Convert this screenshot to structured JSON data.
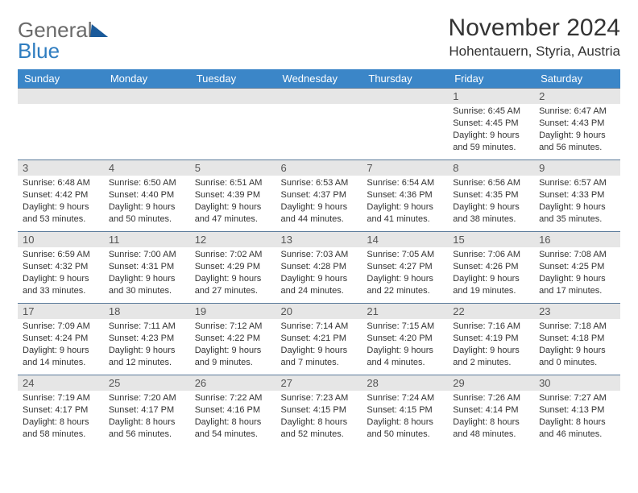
{
  "logo": {
    "word1": "General",
    "word2": "Blue"
  },
  "title": "November 2024",
  "location": "Hohentauern, Styria, Austria",
  "headers": [
    "Sunday",
    "Monday",
    "Tuesday",
    "Wednesday",
    "Thursday",
    "Friday",
    "Saturday"
  ],
  "colors": {
    "header_bg": "#3b86c8",
    "header_text": "#ffffff",
    "daynum_bg": "#e6e6e6",
    "row_border": "#5a7a9a",
    "logo_gray": "#6a6a6a",
    "logo_blue": "#2f7dc0",
    "logo_tri": "#1a5a9a",
    "body_text": "#333333"
  },
  "weeks": [
    [
      null,
      null,
      null,
      null,
      null,
      {
        "n": "1",
        "sr": "Sunrise: 6:45 AM",
        "ss": "Sunset: 4:45 PM",
        "dl": "Daylight: 9 hours and 59 minutes."
      },
      {
        "n": "2",
        "sr": "Sunrise: 6:47 AM",
        "ss": "Sunset: 4:43 PM",
        "dl": "Daylight: 9 hours and 56 minutes."
      }
    ],
    [
      {
        "n": "3",
        "sr": "Sunrise: 6:48 AM",
        "ss": "Sunset: 4:42 PM",
        "dl": "Daylight: 9 hours and 53 minutes."
      },
      {
        "n": "4",
        "sr": "Sunrise: 6:50 AM",
        "ss": "Sunset: 4:40 PM",
        "dl": "Daylight: 9 hours and 50 minutes."
      },
      {
        "n": "5",
        "sr": "Sunrise: 6:51 AM",
        "ss": "Sunset: 4:39 PM",
        "dl": "Daylight: 9 hours and 47 minutes."
      },
      {
        "n": "6",
        "sr": "Sunrise: 6:53 AM",
        "ss": "Sunset: 4:37 PM",
        "dl": "Daylight: 9 hours and 44 minutes."
      },
      {
        "n": "7",
        "sr": "Sunrise: 6:54 AM",
        "ss": "Sunset: 4:36 PM",
        "dl": "Daylight: 9 hours and 41 minutes."
      },
      {
        "n": "8",
        "sr": "Sunrise: 6:56 AM",
        "ss": "Sunset: 4:35 PM",
        "dl": "Daylight: 9 hours and 38 minutes."
      },
      {
        "n": "9",
        "sr": "Sunrise: 6:57 AM",
        "ss": "Sunset: 4:33 PM",
        "dl": "Daylight: 9 hours and 35 minutes."
      }
    ],
    [
      {
        "n": "10",
        "sr": "Sunrise: 6:59 AM",
        "ss": "Sunset: 4:32 PM",
        "dl": "Daylight: 9 hours and 33 minutes."
      },
      {
        "n": "11",
        "sr": "Sunrise: 7:00 AM",
        "ss": "Sunset: 4:31 PM",
        "dl": "Daylight: 9 hours and 30 minutes."
      },
      {
        "n": "12",
        "sr": "Sunrise: 7:02 AM",
        "ss": "Sunset: 4:29 PM",
        "dl": "Daylight: 9 hours and 27 minutes."
      },
      {
        "n": "13",
        "sr": "Sunrise: 7:03 AM",
        "ss": "Sunset: 4:28 PM",
        "dl": "Daylight: 9 hours and 24 minutes."
      },
      {
        "n": "14",
        "sr": "Sunrise: 7:05 AM",
        "ss": "Sunset: 4:27 PM",
        "dl": "Daylight: 9 hours and 22 minutes."
      },
      {
        "n": "15",
        "sr": "Sunrise: 7:06 AM",
        "ss": "Sunset: 4:26 PM",
        "dl": "Daylight: 9 hours and 19 minutes."
      },
      {
        "n": "16",
        "sr": "Sunrise: 7:08 AM",
        "ss": "Sunset: 4:25 PM",
        "dl": "Daylight: 9 hours and 17 minutes."
      }
    ],
    [
      {
        "n": "17",
        "sr": "Sunrise: 7:09 AM",
        "ss": "Sunset: 4:24 PM",
        "dl": "Daylight: 9 hours and 14 minutes."
      },
      {
        "n": "18",
        "sr": "Sunrise: 7:11 AM",
        "ss": "Sunset: 4:23 PM",
        "dl": "Daylight: 9 hours and 12 minutes."
      },
      {
        "n": "19",
        "sr": "Sunrise: 7:12 AM",
        "ss": "Sunset: 4:22 PM",
        "dl": "Daylight: 9 hours and 9 minutes."
      },
      {
        "n": "20",
        "sr": "Sunrise: 7:14 AM",
        "ss": "Sunset: 4:21 PM",
        "dl": "Daylight: 9 hours and 7 minutes."
      },
      {
        "n": "21",
        "sr": "Sunrise: 7:15 AM",
        "ss": "Sunset: 4:20 PM",
        "dl": "Daylight: 9 hours and 4 minutes."
      },
      {
        "n": "22",
        "sr": "Sunrise: 7:16 AM",
        "ss": "Sunset: 4:19 PM",
        "dl": "Daylight: 9 hours and 2 minutes."
      },
      {
        "n": "23",
        "sr": "Sunrise: 7:18 AM",
        "ss": "Sunset: 4:18 PM",
        "dl": "Daylight: 9 hours and 0 minutes."
      }
    ],
    [
      {
        "n": "24",
        "sr": "Sunrise: 7:19 AM",
        "ss": "Sunset: 4:17 PM",
        "dl": "Daylight: 8 hours and 58 minutes."
      },
      {
        "n": "25",
        "sr": "Sunrise: 7:20 AM",
        "ss": "Sunset: 4:17 PM",
        "dl": "Daylight: 8 hours and 56 minutes."
      },
      {
        "n": "26",
        "sr": "Sunrise: 7:22 AM",
        "ss": "Sunset: 4:16 PM",
        "dl": "Daylight: 8 hours and 54 minutes."
      },
      {
        "n": "27",
        "sr": "Sunrise: 7:23 AM",
        "ss": "Sunset: 4:15 PM",
        "dl": "Daylight: 8 hours and 52 minutes."
      },
      {
        "n": "28",
        "sr": "Sunrise: 7:24 AM",
        "ss": "Sunset: 4:15 PM",
        "dl": "Daylight: 8 hours and 50 minutes."
      },
      {
        "n": "29",
        "sr": "Sunrise: 7:26 AM",
        "ss": "Sunset: 4:14 PM",
        "dl": "Daylight: 8 hours and 48 minutes."
      },
      {
        "n": "30",
        "sr": "Sunrise: 7:27 AM",
        "ss": "Sunset: 4:13 PM",
        "dl": "Daylight: 8 hours and 46 minutes."
      }
    ]
  ]
}
